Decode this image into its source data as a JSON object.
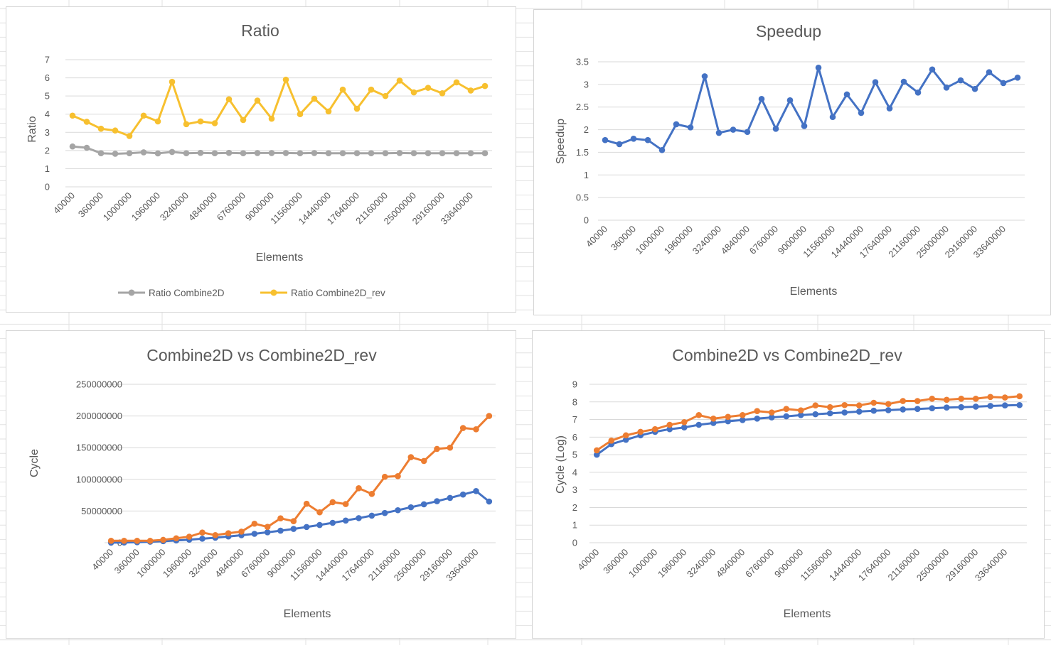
{
  "colors": {
    "gray_series": "#a5a5a5",
    "yellow_series": "#f7c02f",
    "blue_series": "#4472c4",
    "orange_series": "#ed7d31",
    "gridline": "#d9d9d9",
    "text": "#595959"
  },
  "chart_data": [
    {
      "type": "line",
      "title": "Ratio",
      "xlabel": "Elements",
      "ylabel": "Ratio",
      "ylim": [
        0,
        7
      ],
      "yticks": [
        "0",
        "1",
        "2",
        "3",
        "4",
        "5",
        "6",
        "7"
      ],
      "categories": [
        "40000",
        "160000",
        "360000",
        "640000",
        "1000000",
        "1440000",
        "1960000",
        "2560000",
        "3240000",
        "4000000",
        "4840000",
        "5760000",
        "6760000",
        "7840000",
        "9000000",
        "10240000",
        "11560000",
        "12960000",
        "14440000",
        "16000000",
        "17640000",
        "19360000",
        "21160000",
        "23040000",
        "25000000",
        "27040000",
        "29160000",
        "31360000",
        "33640000",
        "36000000"
      ],
      "xtick_labels": [
        "40000",
        "360000",
        "1000000",
        "1960000",
        "3240000",
        "4840000",
        "6760000",
        "9000000",
        "11560000",
        "14440000",
        "17640000",
        "21160000",
        "25000000",
        "29160000",
        "33640000"
      ],
      "series": [
        {
          "name": "Ratio Combine2D",
          "color": "gray_series",
          "values": [
            2.22,
            2.15,
            1.85,
            1.82,
            1.85,
            1.9,
            1.84,
            1.92,
            1.85,
            1.87,
            1.85,
            1.87,
            1.85,
            1.86,
            1.86,
            1.86,
            1.85,
            1.86,
            1.85,
            1.85,
            1.85,
            1.85,
            1.85,
            1.86,
            1.85,
            1.85,
            1.85,
            1.85,
            1.85,
            1.85
          ]
        },
        {
          "name": "Ratio Combine2D_rev",
          "color": "yellow_series",
          "values": [
            3.92,
            3.58,
            3.2,
            3.1,
            2.8,
            3.92,
            3.6,
            5.78,
            3.45,
            3.6,
            3.5,
            4.82,
            3.68,
            4.75,
            3.75,
            5.9,
            4.0,
            4.85,
            4.15,
            5.35,
            4.3,
            5.35,
            5.0,
            5.85,
            5.2,
            5.45,
            5.15,
            5.75,
            5.3,
            5.55
          ]
        }
      ],
      "legend": "bottom"
    },
    {
      "type": "line",
      "title": "Speedup",
      "xlabel": "Elements",
      "ylabel": "Speedup",
      "ylim": [
        0,
        3.5
      ],
      "yticks": [
        "0",
        "0.5",
        "1",
        "1.5",
        "2",
        "2.5",
        "3",
        "3.5"
      ],
      "categories": [
        "40000",
        "160000",
        "360000",
        "640000",
        "1000000",
        "1440000",
        "1960000",
        "2560000",
        "3240000",
        "4000000",
        "4840000",
        "5760000",
        "6760000",
        "7840000",
        "9000000",
        "10240000",
        "11560000",
        "12960000",
        "14440000",
        "16000000",
        "17640000",
        "19360000",
        "21160000",
        "23040000",
        "25000000",
        "27040000",
        "29160000",
        "31360000",
        "33640000",
        "36000000"
      ],
      "xtick_labels": [
        "40000",
        "360000",
        "1000000",
        "1960000",
        "3240000",
        "4840000",
        "6760000",
        "9000000",
        "11560000",
        "14440000",
        "17640000",
        "21160000",
        "25000000",
        "29160000",
        "33640000"
      ],
      "series": [
        {
          "name": "",
          "color": "blue_series",
          "values": [
            1.77,
            1.68,
            1.8,
            1.77,
            1.55,
            2.12,
            2.05,
            3.18,
            1.93,
            2.0,
            1.95,
            2.68,
            2.02,
            2.65,
            2.08,
            3.37,
            2.28,
            2.78,
            2.37,
            3.05,
            2.47,
            3.06,
            2.82,
            3.33,
            2.93,
            3.09,
            2.9,
            3.27,
            3.03,
            3.15
          ]
        }
      ]
    },
    {
      "type": "line",
      "title": "Combine2D vs Combine2D_rev",
      "xlabel": "Elements",
      "ylabel": "Cycle",
      "ylim": [
        0,
        250000000
      ],
      "yticks": [
        "0",
        "50000000",
        "100000000",
        "150000000",
        "200000000",
        "250000000"
      ],
      "categories": [
        "40000",
        "160000",
        "360000",
        "640000",
        "1000000",
        "1440000",
        "1960000",
        "2560000",
        "3240000",
        "4000000",
        "4840000",
        "5760000",
        "6760000",
        "7840000",
        "9000000",
        "10240000",
        "11560000",
        "12960000",
        "14440000",
        "16000000",
        "17640000",
        "19360000",
        "21160000",
        "23040000",
        "25000000",
        "27040000",
        "29160000",
        "31360000",
        "33640000",
        "36000000"
      ],
      "xtick_labels": [
        "40000",
        "360000",
        "1000000",
        "1960000",
        "3240000",
        "4840000",
        "6760000",
        "9000000",
        "11560000",
        "14440000",
        "17640000",
        "21160000",
        "25000000",
        "29160000",
        "33640000"
      ],
      "series": [
        {
          "name": "",
          "color": "blue_series",
          "values": [
            100000,
            300000,
            800000,
            1600000,
            2400000,
            3500000,
            4800000,
            6300000,
            7900000,
            9800000,
            11800000,
            14000000,
            16500000,
            19000000,
            21800000,
            24800000,
            28000000,
            31400000,
            35000000,
            38800000,
            42700000,
            46900000,
            51300000,
            55900000,
            60600000,
            65500000,
            70700000,
            76000000,
            81500000,
            65000000
          ]
        },
        {
          "name": "",
          "color": "orange_series",
          "values": [
            3000000,
            3000000,
            3000000,
            3000000,
            4500000,
            7000000,
            9500000,
            16000000,
            12000000,
            15000000,
            17500000,
            30000000,
            25000000,
            38500000,
            34000000,
            61500000,
            48000000,
            64000000,
            61000000,
            86000000,
            77000000,
            104000000,
            105000000,
            135000000,
            129000000,
            148000000,
            150000000,
            181000000,
            179000000,
            200000000
          ]
        }
      ]
    },
    {
      "type": "line",
      "title": "Combine2D vs Combine2D_rev",
      "xlabel": "Elements",
      "ylabel": "Cycle (Log)",
      "ylim": [
        0,
        9
      ],
      "yticks": [
        "0",
        "1",
        "2",
        "3",
        "4",
        "5",
        "6",
        "7",
        "8",
        "9"
      ],
      "categories": [
        "40000",
        "160000",
        "360000",
        "640000",
        "1000000",
        "1440000",
        "1960000",
        "2560000",
        "3240000",
        "4000000",
        "4840000",
        "5760000",
        "6760000",
        "7840000",
        "9000000",
        "10240000",
        "11560000",
        "12960000",
        "14440000",
        "16000000",
        "17640000",
        "19360000",
        "21160000",
        "23040000",
        "25000000",
        "27040000",
        "29160000",
        "31360000",
        "33640000",
        "36000000"
      ],
      "xtick_labels": [
        "40000",
        "360000",
        "1000000",
        "1960000",
        "3240000",
        "4840000",
        "6760000",
        "9000000",
        "11560000",
        "14440000",
        "17640000",
        "21160000",
        "25000000",
        "29160000",
        "33640000"
      ],
      "series": [
        {
          "name": "",
          "color": "blue_series",
          "values": [
            5.0,
            5.6,
            5.85,
            6.1,
            6.3,
            6.45,
            6.55,
            6.7,
            6.8,
            6.9,
            6.97,
            7.05,
            7.12,
            7.18,
            7.25,
            7.3,
            7.35,
            7.4,
            7.45,
            7.5,
            7.53,
            7.57,
            7.6,
            7.64,
            7.68,
            7.7,
            7.73,
            7.77,
            7.8,
            7.82
          ]
        },
        {
          "name": "",
          "color": "orange_series",
          "values": [
            5.25,
            5.8,
            6.1,
            6.3,
            6.45,
            6.7,
            6.85,
            7.25,
            7.05,
            7.15,
            7.25,
            7.48,
            7.4,
            7.6,
            7.52,
            7.8,
            7.7,
            7.82,
            7.8,
            7.95,
            7.88,
            8.05,
            8.05,
            8.18,
            8.12,
            8.18,
            8.18,
            8.28,
            8.25,
            8.32
          ]
        }
      ]
    }
  ]
}
